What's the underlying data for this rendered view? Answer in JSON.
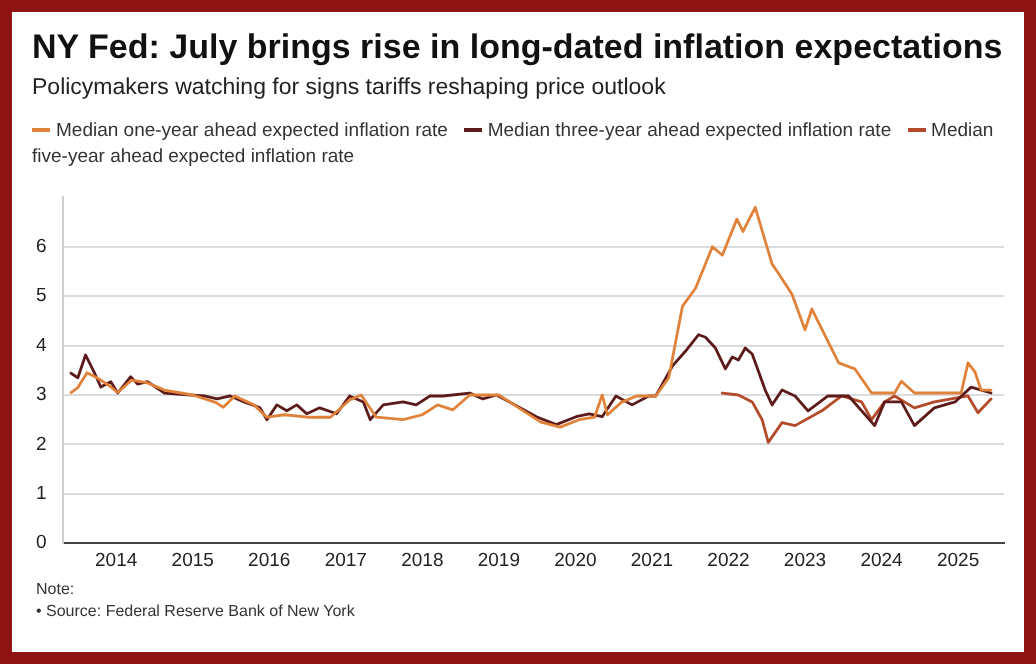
{
  "chart_data": {
    "type": "line",
    "title": "NY Fed: July brings rise in long-dated inflation expectations",
    "subtitle": "Policymakers watching for signs tariffs reshaping price outlook",
    "series": [
      {
        "name": "Median one-year ahead expected inflation rate",
        "color": "#e0823a",
        "x": [
          2013.41,
          2013.5,
          2013.62,
          2013.75,
          2013.9,
          2014.02,
          2014.2,
          2014.4,
          2014.63,
          2015.0,
          2015.3,
          2015.4,
          2015.55,
          2015.8,
          2015.97,
          2016.2,
          2016.5,
          2016.8,
          2017.05,
          2017.2,
          2017.4,
          2017.75,
          2018.0,
          2018.2,
          2018.4,
          2018.62,
          2019.0,
          2019.3,
          2019.55,
          2019.8,
          2020.05,
          2020.25,
          2020.35,
          2020.42,
          2020.6,
          2020.8,
          2021.05,
          2021.22,
          2021.4,
          2021.57,
          2021.79,
          2021.92,
          2022.11,
          2022.19,
          2022.35,
          2022.57,
          2022.65,
          2022.83,
          2023.0,
          2023.09,
          2023.44,
          2023.65,
          2023.87,
          2024.17,
          2024.26,
          2024.43,
          2025.04,
          2025.13,
          2025.22,
          2025.3,
          2025.43
        ],
        "values": [
          3.05,
          3.15,
          3.45,
          3.35,
          3.2,
          3.05,
          3.3,
          3.25,
          3.1,
          3.0,
          2.85,
          2.75,
          2.98,
          2.8,
          2.55,
          2.6,
          2.55,
          2.55,
          2.9,
          3.0,
          2.55,
          2.5,
          2.6,
          2.8,
          2.7,
          3.0,
          3.0,
          2.7,
          2.45,
          2.35,
          2.5,
          2.55,
          3.0,
          2.6,
          2.85,
          2.98,
          2.98,
          3.35,
          4.8,
          5.16,
          6.0,
          5.83,
          6.56,
          6.31,
          6.8,
          5.65,
          5.47,
          5.04,
          4.32,
          4.74,
          3.65,
          3.53,
          3.04,
          3.04,
          3.28,
          3.04,
          3.04,
          3.65,
          3.47,
          3.1,
          3.1
        ]
      },
      {
        "name": "Median three-year ahead expected inflation rate",
        "color": "#5c1a1a",
        "x": [
          2013.41,
          2013.5,
          2013.6,
          2013.71,
          2013.8,
          2013.93,
          2014.02,
          2014.19,
          2014.28,
          2014.41,
          2014.63,
          2015.15,
          2015.32,
          2015.49,
          2015.67,
          2015.88,
          2015.97,
          2016.1,
          2016.23,
          2016.36,
          2016.49,
          2016.66,
          2016.88,
          2017.05,
          2017.23,
          2017.32,
          2017.49,
          2017.75,
          2017.92,
          2018.1,
          2018.27,
          2018.62,
          2018.79,
          2018.97,
          2019.14,
          2019.49,
          2019.75,
          2020.01,
          2020.18,
          2020.35,
          2020.53,
          2020.74,
          2020.96,
          2021.05,
          2021.27,
          2021.44,
          2021.61,
          2021.7,
          2021.83,
          2021.96,
          2022.05,
          2022.13,
          2022.22,
          2022.31,
          2022.48,
          2022.57,
          2022.7,
          2022.87,
          2023.04,
          2023.3,
          2023.57,
          2023.91,
          2024.04,
          2024.26,
          2024.43,
          2024.69,
          2024.96,
          2025.17,
          2025.43
        ],
        "values": [
          3.44,
          3.35,
          3.81,
          3.47,
          3.16,
          3.27,
          3.04,
          3.37,
          3.22,
          3.27,
          3.04,
          2.98,
          2.92,
          2.98,
          2.86,
          2.74,
          2.5,
          2.8,
          2.68,
          2.8,
          2.62,
          2.74,
          2.62,
          2.98,
          2.86,
          2.5,
          2.8,
          2.86,
          2.8,
          2.98,
          2.98,
          3.04,
          2.92,
          3.0,
          2.86,
          2.56,
          2.4,
          2.56,
          2.62,
          2.56,
          2.98,
          2.8,
          2.98,
          2.98,
          3.59,
          3.89,
          4.22,
          4.17,
          3.95,
          3.53,
          3.77,
          3.71,
          3.95,
          3.83,
          3.1,
          2.8,
          3.1,
          2.98,
          2.68,
          2.98,
          2.98,
          2.38,
          2.86,
          2.86,
          2.38,
          2.74,
          2.86,
          3.16,
          3.04
        ]
      },
      {
        "name": "Median five-year ahead expected inflation rate",
        "color": "#b34a2a",
        "x": [
          2021.92,
          2022.13,
          2022.31,
          2022.44,
          2022.52,
          2022.7,
          2022.87,
          2023.22,
          2023.48,
          2023.74,
          2023.87,
          2024.04,
          2024.17,
          2024.43,
          2024.69,
          2025.13,
          2025.26,
          2025.43
        ],
        "values": [
          3.04,
          3.0,
          2.86,
          2.5,
          2.04,
          2.44,
          2.38,
          2.68,
          2.98,
          2.86,
          2.5,
          2.86,
          2.98,
          2.74,
          2.86,
          2.98,
          2.64,
          2.92
        ]
      }
    ],
    "xlim": [
      2013.3,
      2025.6
    ],
    "xticks": [
      2014,
      2015,
      2016,
      2017,
      2018,
      2019,
      2020,
      2021,
      2022,
      2023,
      2024,
      2025
    ],
    "ylim": [
      0,
      7
    ],
    "yticks": [
      0,
      1,
      2,
      3,
      4,
      5,
      6
    ],
    "grid": "y",
    "legend": "top",
    "marker": "none",
    "line_style": "solid",
    "annotations": [
      "Note:",
      "• Source: Federal Reserve Bank of New York"
    ]
  }
}
